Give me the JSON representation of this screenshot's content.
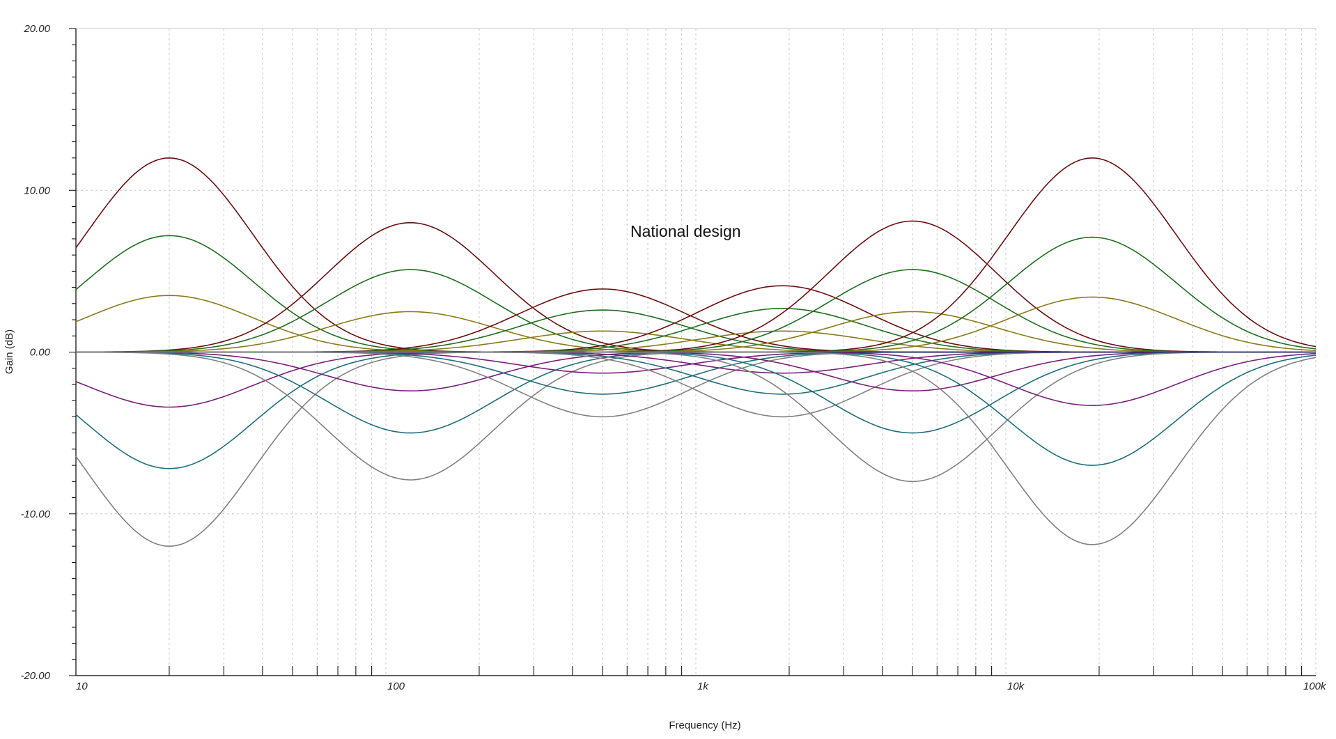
{
  "chart_data": {
    "type": "line",
    "annotation": "National design",
    "xlabel": "Frequency (Hz)",
    "ylabel": "Gain (dB)",
    "x_scale": "log",
    "xlim": [
      10,
      100000
    ],
    "ylim": [
      -20,
      20
    ],
    "x_ticks": [
      {
        "value": 10,
        "label": "10"
      },
      {
        "value": 100,
        "label": "100"
      },
      {
        "value": 1000,
        "label": "1k"
      },
      {
        "value": 10000,
        "label": "10k"
      },
      {
        "value": 100000,
        "label": "100k"
      }
    ],
    "y_ticks": [
      {
        "value": 20,
        "label": "20.00"
      },
      {
        "value": 10,
        "label": "10.00"
      },
      {
        "value": 0,
        "label": "0.00"
      },
      {
        "value": -10,
        "label": "-10.00"
      },
      {
        "value": -20,
        "label": "-20.00"
      }
    ],
    "grid": true,
    "bands": [
      {
        "center_hz": 20,
        "gains": [
          12.0,
          7.2,
          3.5,
          0,
          -3.4,
          -7.2,
          -12.0
        ]
      },
      {
        "center_hz": 120,
        "gains": [
          8.0,
          5.1,
          2.5,
          0,
          -2.4,
          -5.0,
          -7.9
        ]
      },
      {
        "center_hz": 500,
        "gains": [
          3.9,
          2.6,
          1.3,
          0,
          -1.3,
          -2.6,
          -4.0
        ]
      },
      {
        "center_hz": 1900,
        "gains": [
          4.1,
          2.7,
          1.3,
          0,
          -1.3,
          -2.6,
          -4.0
        ]
      },
      {
        "center_hz": 5000,
        "gains": [
          8.1,
          5.1,
          2.5,
          0,
          -2.4,
          -5.0,
          -8.0
        ]
      },
      {
        "center_hz": 19000,
        "gains": [
          12.0,
          7.1,
          3.4,
          0,
          -3.3,
          -7.0,
          -11.9
        ]
      }
    ],
    "series_colors": [
      "#6b0f0f",
      "#1f6e1f",
      "#8a7a18",
      "#2a2a6a",
      "#7a1f7a",
      "#1f6e7a",
      "#808080"
    ]
  }
}
